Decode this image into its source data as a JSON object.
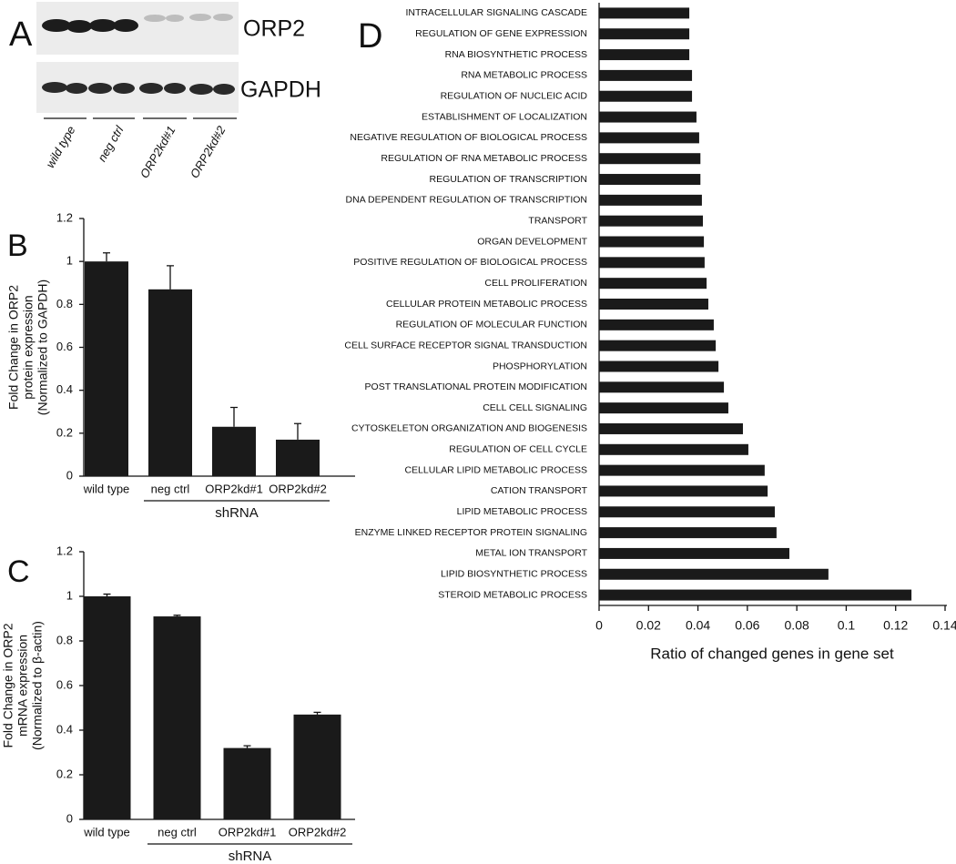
{
  "panel_a": {
    "panel": "A",
    "blot_labels": [
      "ORP2",
      "GAPDH"
    ],
    "lanes": [
      "wild type",
      "neg ctrl",
      "ORP2kd#1",
      "ORP2kd#2"
    ]
  },
  "chart_data": [
    {
      "type": "bar",
      "panel": "B",
      "categories": [
        "wild type",
        "neg ctrl",
        "ORP2kd#1",
        "ORP2kd#2"
      ],
      "values": [
        1.0,
        0.87,
        0.23,
        0.17
      ],
      "errors": [
        0.04,
        0.11,
        0.09,
        0.075
      ],
      "color": "#1a1a1a",
      "ylim": [
        0,
        1.2
      ],
      "yticks": [
        0,
        0.2,
        0.4,
        0.6,
        0.8,
        1,
        1.2
      ],
      "ylabel": [
        "Fold Change in ORP2",
        "protein expression",
        "(Normalized to GAPDH)"
      ],
      "group_label": "shRNA"
    },
    {
      "type": "bar",
      "panel": "C",
      "categories": [
        "wild type",
        "neg ctrl",
        "ORP2kd#1",
        "ORP2kd#2"
      ],
      "values": [
        1.0,
        0.91,
        0.32,
        0.47
      ],
      "errors": [
        0.01,
        0.005,
        0.01,
        0.01
      ],
      "color": "#1a1a1a",
      "ylim": [
        0,
        1.2
      ],
      "yticks": [
        0,
        0.2,
        0.4,
        0.6,
        0.8,
        1,
        1.2
      ],
      "ylabel": [
        "Fold Change in ORP2",
        "mRNA expression",
        "(Normalized to β-actin)"
      ],
      "group_label": "shRNA"
    },
    {
      "type": "barh",
      "panel": "D",
      "categories": [
        "INTRACELLULAR SIGNALING CASCADE",
        "REGULATION OF GENE EXPRESSION",
        "RNA BIOSYNTHETIC PROCESS",
        "RNA METABOLIC PROCESS",
        "REGULATION OF NUCLEIC ACID",
        "ESTABLISHMENT OF LOCALIZATION",
        "NEGATIVE REGULATION OF BIOLOGICAL PROCESS",
        "REGULATION OF RNA METABOLIC PROCESS",
        "REGULATION OF TRANSCRIPTION",
        "DNA DEPENDENT REGULATION OF TRANSCRIPTION",
        "TRANSPORT",
        "ORGAN DEVELOPMENT",
        "POSITIVE REGULATION OF BIOLOGICAL PROCESS",
        "CELL PROLIFERATION",
        "CELLULAR PROTEIN METABOLIC PROCESS",
        "REGULATION OF MOLECULAR FUNCTION",
        "CELL SURFACE RECEPTOR SIGNAL TRANSDUCTION",
        "PHOSPHORYLATION",
        "POST TRANSLATIONAL PROTEIN MODIFICATION",
        "CELL CELL SIGNALING",
        "CYTOSKELETON ORGANIZATION AND BIOGENESIS",
        "REGULATION OF CELL CYCLE",
        "CELLULAR LIPID METABOLIC PROCESS",
        "CATION TRANSPORT",
        "LIPID METABOLIC PROCESS",
        "ENZYME LINKED RECEPTOR PROTEIN SIGNALING",
        "METAL ION TRANSPORT",
        "LIPID BIOSYNTHETIC PROCESS",
        "STEROID METABOLIC PROCESS"
      ],
      "values": [
        0.0365,
        0.0365,
        0.0365,
        0.0376,
        0.0376,
        0.0394,
        0.0405,
        0.041,
        0.041,
        0.0416,
        0.042,
        0.0424,
        0.0427,
        0.0435,
        0.0442,
        0.0464,
        0.0472,
        0.0483,
        0.0505,
        0.0523,
        0.0582,
        0.0604,
        0.067,
        0.0682,
        0.0711,
        0.0718,
        0.077,
        0.0928,
        0.1264
      ],
      "color": "#1a1a1a",
      "xlim": [
        0,
        0.14
      ],
      "xticks": [
        0,
        0.02,
        0.04,
        0.06,
        0.08,
        0.1,
        0.12,
        0.14
      ],
      "xlabel": "Ratio of changed genes in gene set"
    }
  ]
}
